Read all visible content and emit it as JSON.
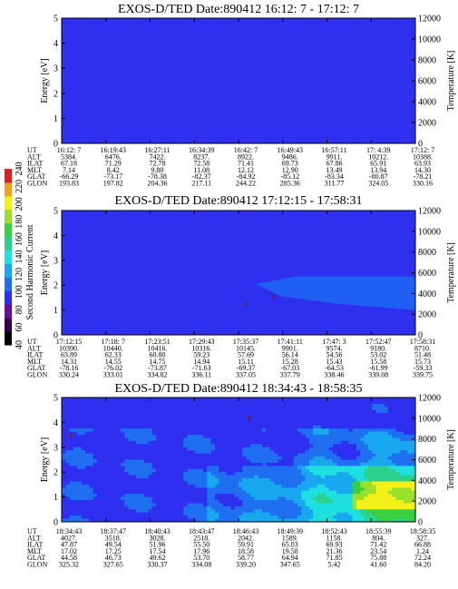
{
  "colors": {
    "background": "#2f2ff0",
    "colorbar": [
      "#000000",
      "#3a0050",
      "#6a0aa0",
      "#2f2ff0",
      "#1f6ff0",
      "#19a8f0",
      "#1ee0e0",
      "#2bd08a",
      "#38d040",
      "#9be02a",
      "#f2f21a",
      "#f4a020",
      "#e02020"
    ]
  },
  "colorbar": {
    "label": "Second Harmonic Current",
    "ticks": [
      "40",
      "60",
      "80",
      "100",
      "120",
      "140",
      "160",
      "180",
      "200",
      "220",
      "240"
    ]
  },
  "chart_data": [
    {
      "type": "heatmap",
      "title": "EXOS-D/TED   Date:890412   16:12: 7 - 17:12: 7",
      "ylabel": "Energy [eV]",
      "y2label": "Temperature [K]",
      "ylim": [
        0,
        5
      ],
      "y2lim": [
        0,
        12000
      ],
      "yticks": [
        "0",
        "1",
        "2",
        "3",
        "4",
        "5"
      ],
      "y2ticks": [
        "0",
        "2000",
        "4000",
        "6000",
        "8000",
        "10000",
        "12000"
      ],
      "fill": "uniform background (blue)",
      "rows": [
        {
          "label": "UT",
          "values": [
            "16:12: 7",
            "16:19:43",
            "16:27:11",
            "16:34:39",
            "16:42: 7",
            "16:49:43",
            "16:57:11",
            "17: 4:39",
            "17:12: 7"
          ]
        },
        {
          "label": "ALT",
          "values": [
            "5384.",
            "6476.",
            "7422.",
            "8237.",
            "8922.",
            "9486.",
            "9911.",
            "10212.",
            "10388."
          ]
        },
        {
          "label": "ILAT",
          "values": [
            "67.18",
            "71.29",
            "72.78",
            "72.58",
            "71.41",
            "69.73",
            "67.86",
            "65.91",
            "63.93"
          ]
        },
        {
          "label": "MLT",
          "values": [
            "7.14",
            "8.42",
            "9.80",
            "11.08",
            "12.12",
            "12.90",
            "13.49",
            "13.94",
            "14.30"
          ]
        },
        {
          "label": "GLAT",
          "values": [
            "-66.29",
            "-73.17",
            "-78.38",
            "-82.37",
            "-84.92",
            "-85.12",
            "-83.34",
            "-80.87",
            "-78.21"
          ]
        },
        {
          "label": "GLON",
          "values": [
            "193.83",
            "197.82",
            "204.36",
            "217.11",
            "244.22",
            "285.36",
            "311.77",
            "324.05",
            "330.16"
          ]
        }
      ]
    },
    {
      "type": "heatmap",
      "title": "EXOS-D/TED   Date:890412   17:12:15 - 17:58:31",
      "ylabel": "Energy [eV]",
      "y2label": "Temperature [K]",
      "ylim": [
        0,
        5
      ],
      "y2lim": [
        0,
        12000
      ],
      "yticks": [
        "0",
        "1",
        "2",
        "3",
        "4",
        "5"
      ],
      "y2ticks": [
        "0",
        "2000",
        "4000",
        "6000",
        "8000",
        "10000",
        "12000"
      ],
      "fill": "blue background; brighter band from about 1 to 2.3 eV in the second half",
      "rows": [
        {
          "label": "UT",
          "values": [
            "17:12:15",
            "17:18: 7",
            "17:23:51",
            "17:29:43",
            "17:35:37",
            "17:41:11",
            "17:47: 3",
            "17:52:47",
            "17:58:31"
          ]
        },
        {
          "label": "ALT",
          "values": [
            "10390.",
            "10440.",
            "10416.",
            "10316.",
            "10145.",
            "9901.",
            "9574.",
            "9180.",
            "8710."
          ]
        },
        {
          "label": "ILAT",
          "values": [
            "63.89",
            "62.33",
            "60.80",
            "59.23",
            "57.69",
            "56.14",
            "54.56",
            "53.02",
            "51.48"
          ]
        },
        {
          "label": "MLT",
          "values": [
            "14.31",
            "14.55",
            "14.75",
            "14.94",
            "15.11",
            "15.28",
            "15.43",
            "15.58",
            "15.73"
          ]
        },
        {
          "label": "GLAT",
          "values": [
            "-78.16",
            "-76.02",
            "-73.87",
            "-71.63",
            "-69.37",
            "-67.03",
            "-64.53",
            "-61.99",
            "-59.33"
          ]
        },
        {
          "label": "GLON",
          "values": [
            "330.24",
            "333.01",
            "334.82",
            "336.11",
            "337.05",
            "337.79",
            "338.46",
            "339.08",
            "339.75"
          ]
        }
      ]
    },
    {
      "type": "heatmap",
      "title": "EXOS-D/TED   Date:890412   18:34:43 - 18:58:35",
      "ylabel": "Energy [eV]",
      "y2label": "Temperature [K]",
      "ylim": [
        0,
        5
      ],
      "y2lim": [
        0,
        12000
      ],
      "yticks": [
        "0",
        "1",
        "2",
        "3",
        "4",
        "5"
      ],
      "y2ticks": [
        "0",
        "2000",
        "4000",
        "6000",
        "8000",
        "10000",
        "12000"
      ],
      "fill": "mixed blue/cyan/green, yellow patches near 0.3-1.5 eV toward the end",
      "rows": [
        {
          "label": "UT",
          "values": [
            "18:34:43",
            "18:37:47",
            "18:40:43",
            "18:43:47",
            "18:46:43",
            "18:49:39",
            "18:52:43",
            "18:55:39",
            "18:58:35"
          ]
        },
        {
          "label": "ALT",
          "values": [
            "4027.",
            "3518.",
            "3028.",
            "2518.",
            "2042.",
            "1589.",
            "1158.",
            "804.",
            "327."
          ]
        },
        {
          "label": "ILAT",
          "values": [
            "47.87",
            "49.54",
            "51.96",
            "55.50",
            "59.91",
            "65.03",
            "69.93",
            "71.42",
            "66.88"
          ]
        },
        {
          "label": "MLT",
          "values": [
            "17.02",
            "17.25",
            "17.54",
            "17.96",
            "18.58",
            "19.58",
            "21.36",
            "23.54",
            "1.24"
          ]
        },
        {
          "label": "GLAT",
          "values": [
            "44.58",
            "46.73",
            "49.62",
            "53.70",
            "58.77",
            "64.94",
            "71.85",
            "75.88",
            "72.24"
          ]
        },
        {
          "label": "GLON",
          "values": [
            "325.32",
            "327.65",
            "330.37",
            "334.08",
            "339.20",
            "347.65",
            "5.42",
            "41.60",
            "84.20"
          ]
        }
      ]
    }
  ]
}
